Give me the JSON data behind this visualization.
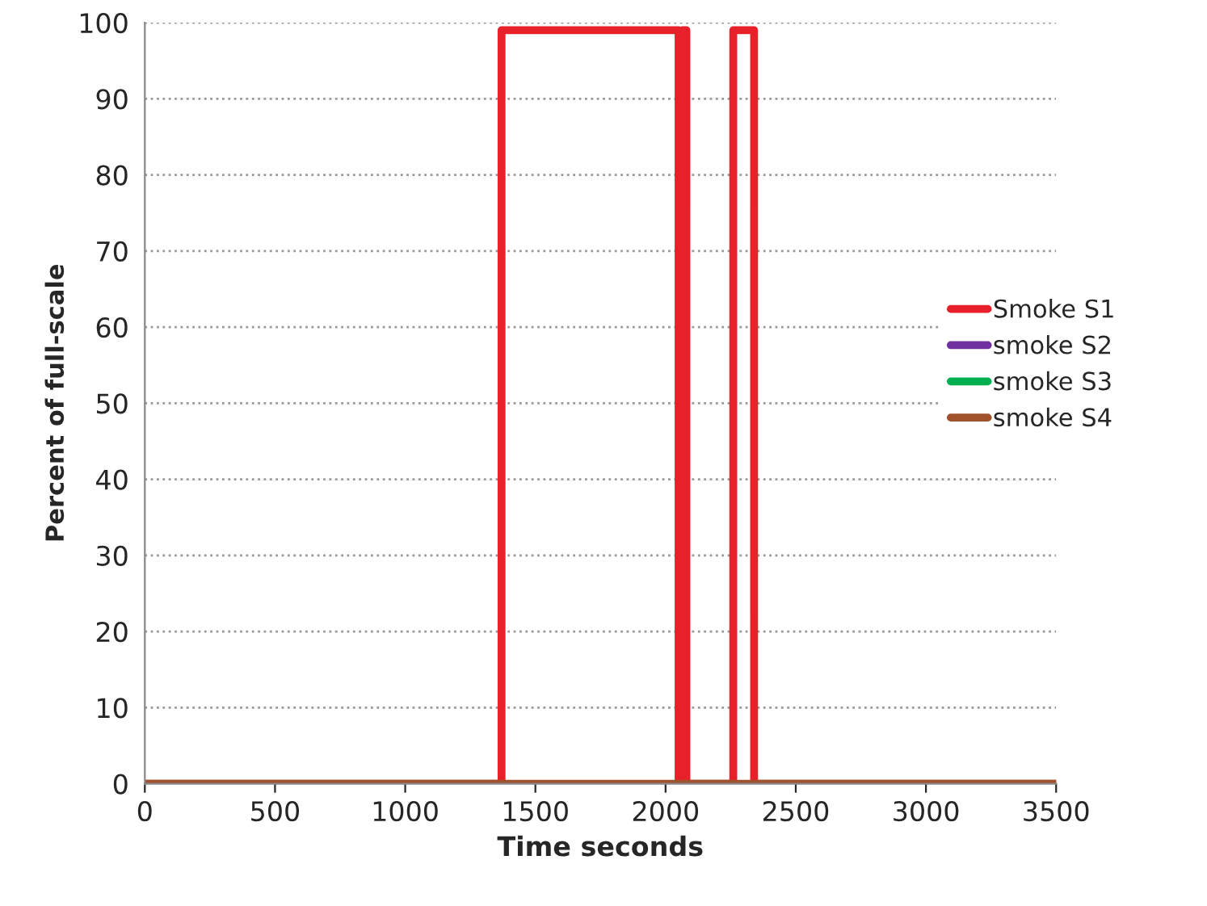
{
  "chart_data": {
    "type": "line",
    "xlabel": "Time seconds",
    "ylabel": "Percent of full-scale",
    "xlim": [
      0,
      3500
    ],
    "xticks": [
      0,
      500,
      1000,
      1500,
      2000,
      2500,
      3000,
      3500
    ],
    "ylim": [
      0,
      100
    ],
    "yticks": [
      0,
      10,
      20,
      30,
      40,
      50,
      60,
      70,
      80,
      90,
      100
    ],
    "grid": "y",
    "legend": "right",
    "marker": "none",
    "line_style": "solid",
    "series": [
      {
        "name": "Smoke S1",
        "color": "#e8202a",
        "x": [
          0,
          1370,
          1370,
          2050,
          2050,
          2065,
          2065,
          2080,
          2080,
          2260,
          2260,
          2340,
          2340,
          3500
        ],
        "values": [
          0,
          0,
          99,
          99,
          0,
          0,
          99,
          99,
          0,
          0,
          99,
          99,
          0,
          0
        ]
      },
      {
        "name": "smoke S2",
        "color": "#7030a0"
      },
      {
        "name": "smoke S3",
        "color": "#00b050"
      },
      {
        "name": "smoke S4",
        "color": "#a0522d",
        "x": [
          0,
          3500
        ],
        "values": [
          0,
          0
        ]
      }
    ]
  }
}
